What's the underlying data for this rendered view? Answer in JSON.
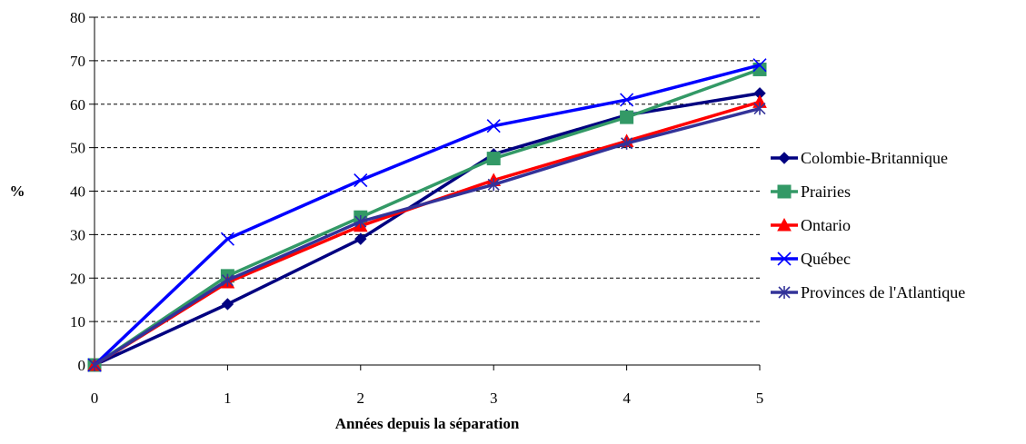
{
  "chart_data": {
    "type": "line",
    "title": "",
    "xlabel": "Années depuis la séparation",
    "ylabel": "%",
    "x": [
      0,
      1,
      2,
      3,
      4,
      5
    ],
    "xlim": [
      0,
      5
    ],
    "ylim": [
      0,
      80
    ],
    "y_ticks": [
      0,
      10,
      20,
      30,
      40,
      50,
      60,
      70,
      80
    ],
    "grid": "horizontal-dashed",
    "legend_position": "right",
    "series": [
      {
        "name": "Colombie-Britannique",
        "color": "#000080",
        "marker": "diamond",
        "values": [
          0,
          14,
          29,
          48.5,
          57.5,
          62.5
        ]
      },
      {
        "name": "Prairies",
        "color": "#339966",
        "marker": "square",
        "values": [
          0,
          20.5,
          34,
          47.5,
          57,
          68
        ]
      },
      {
        "name": "Ontario",
        "color": "#ff0000",
        "marker": "triangle",
        "values": [
          0,
          19,
          32,
          42.5,
          51.5,
          60.5
        ]
      },
      {
        "name": "Québec",
        "color": "#0000ff",
        "marker": "x",
        "values": [
          0,
          29,
          42.5,
          55,
          61,
          69
        ]
      },
      {
        "name": "Provinces de l'Atlantique",
        "color": "#333399",
        "marker": "star",
        "values": [
          0,
          19.5,
          33,
          41.5,
          51,
          59
        ]
      }
    ]
  }
}
